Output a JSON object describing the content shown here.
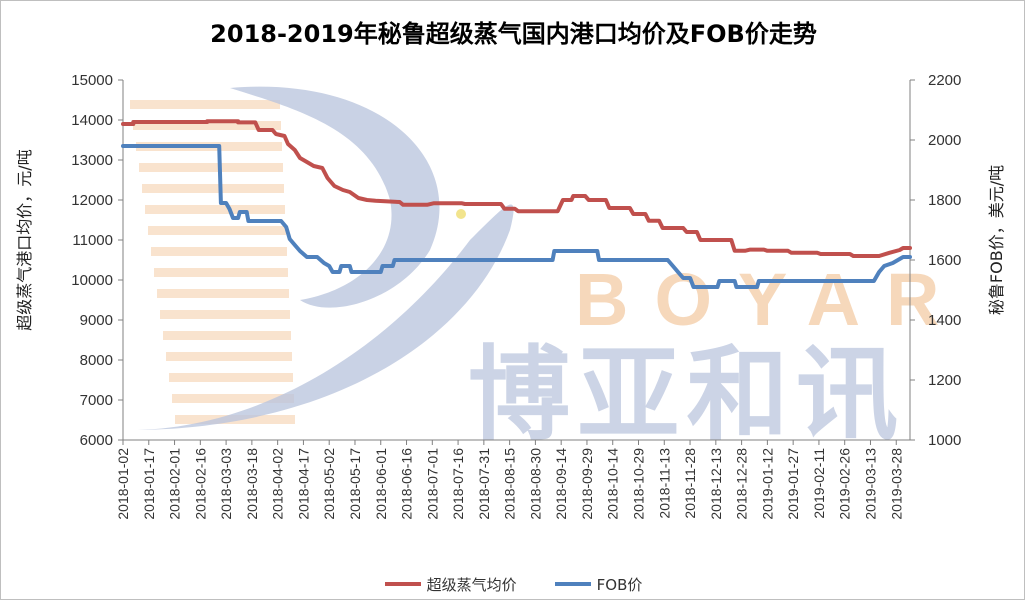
{
  "colors": {
    "series_red": "#c0504d",
    "series_blue": "#4f81bd",
    "watermark_blue": "#b8c3dc",
    "watermark_orange": "#f3c9a0"
  },
  "watermark": {
    "brand_en": "BOYAR",
    "brand_cn": "博亚和讯"
  },
  "chart_data": {
    "type": "line",
    "title": "2018-2019年秘鲁超级蒸气国内港口均价及FOB价走势",
    "ylabel_left": "超级蒸气港口均价，元/吨",
    "ylabel_right": "秘鲁FOB价，美元/吨",
    "ylim_left": [
      6000,
      15000
    ],
    "ylim_right": [
      1000,
      2200
    ],
    "yticks_left": [
      6000,
      7000,
      8000,
      9000,
      10000,
      11000,
      12000,
      13000,
      14000,
      15000
    ],
    "yticks_right": [
      1000,
      1200,
      1400,
      1600,
      1800,
      2000,
      2200
    ],
    "xlim": [
      "2018-01-02",
      "2019-04-05"
    ],
    "xtick_labels": [
      "2018-01-02",
      "2018-01-17",
      "2018-02-01",
      "2018-02-16",
      "2018-03-03",
      "2018-03-18",
      "2018-04-02",
      "2018-04-17",
      "2018-05-02",
      "2018-05-17",
      "2018-06-01",
      "2018-06-16",
      "2018-07-01",
      "2018-07-16",
      "2018-07-31",
      "2018-08-15",
      "2018-08-30",
      "2018-09-14",
      "2018-09-29",
      "2018-10-14",
      "2018-10-29",
      "2018-11-13",
      "2018-11-28",
      "2018-12-13",
      "2018-12-28",
      "2019-01-12",
      "2019-01-27",
      "2019-02-11",
      "2019-02-26",
      "2019-03-13",
      "2019-03-28"
    ],
    "legend_position": "bottom",
    "grid": false,
    "series": [
      {
        "name": "超级蒸气均价",
        "axis": "left",
        "color": "#c0504d",
        "points": [
          [
            "2018-01-02",
            13900
          ],
          [
            "2018-01-08",
            13900
          ],
          [
            "2018-01-08",
            13950
          ],
          [
            "2018-02-20",
            13950
          ],
          [
            "2018-02-20",
            13970
          ],
          [
            "2018-03-10",
            13970
          ],
          [
            "2018-03-10",
            13940
          ],
          [
            "2018-03-20",
            13940
          ],
          [
            "2018-03-22",
            13750
          ],
          [
            "2018-03-30",
            13750
          ],
          [
            "2018-04-01",
            13650
          ],
          [
            "2018-04-06",
            13600
          ],
          [
            "2018-04-08",
            13400
          ],
          [
            "2018-04-12",
            13250
          ],
          [
            "2018-04-15",
            13050
          ],
          [
            "2018-04-19",
            12950
          ],
          [
            "2018-04-23",
            12850
          ],
          [
            "2018-04-28",
            12800
          ],
          [
            "2018-05-01",
            12550
          ],
          [
            "2018-05-05",
            12350
          ],
          [
            "2018-05-10",
            12250
          ],
          [
            "2018-05-14",
            12200
          ],
          [
            "2018-05-19",
            12050
          ],
          [
            "2018-05-24",
            12000
          ],
          [
            "2018-05-29",
            11980
          ],
          [
            "2018-06-12",
            11950
          ],
          [
            "2018-06-14",
            11880
          ],
          [
            "2018-06-28",
            11880
          ],
          [
            "2018-07-02",
            11920
          ],
          [
            "2018-07-18",
            11920
          ],
          [
            "2018-07-20",
            11900
          ],
          [
            "2018-08-10",
            11900
          ],
          [
            "2018-08-12",
            11780
          ],
          [
            "2018-08-18",
            11780
          ],
          [
            "2018-08-20",
            11720
          ],
          [
            "2018-09-12",
            11720
          ],
          [
            "2018-09-15",
            12000
          ],
          [
            "2018-09-20",
            12000
          ],
          [
            "2018-09-21",
            12100
          ],
          [
            "2018-09-28",
            12100
          ],
          [
            "2018-09-30",
            12000
          ],
          [
            "2018-10-10",
            12000
          ],
          [
            "2018-10-12",
            11800
          ],
          [
            "2018-10-24",
            11800
          ],
          [
            "2018-10-26",
            11650
          ],
          [
            "2018-11-02",
            11650
          ],
          [
            "2018-11-04",
            11480
          ],
          [
            "2018-11-10",
            11480
          ],
          [
            "2018-11-12",
            11300
          ],
          [
            "2018-11-24",
            11300
          ],
          [
            "2018-11-26",
            11200
          ],
          [
            "2018-12-02",
            11200
          ],
          [
            "2018-12-04",
            11000
          ],
          [
            "2018-12-22",
            11000
          ],
          [
            "2018-12-24",
            10730
          ],
          [
            "2018-12-30",
            10730
          ],
          [
            "2019-01-02",
            10760
          ],
          [
            "2019-01-10",
            10760
          ],
          [
            "2019-01-12",
            10730
          ],
          [
            "2019-01-24",
            10730
          ],
          [
            "2019-01-26",
            10680
          ],
          [
            "2019-02-10",
            10680
          ],
          [
            "2019-02-12",
            10650
          ],
          [
            "2019-03-01",
            10650
          ],
          [
            "2019-03-03",
            10600
          ],
          [
            "2019-03-18",
            10600
          ],
          [
            "2019-03-24",
            10680
          ],
          [
            "2019-03-30",
            10750
          ],
          [
            "2019-04-01",
            10800
          ],
          [
            "2019-04-05",
            10800
          ]
        ]
      },
      {
        "name": "FOB价",
        "axis": "right",
        "color": "#4f81bd",
        "points": [
          [
            "2018-01-02",
            1980
          ],
          [
            "2018-02-27",
            1980
          ],
          [
            "2018-02-28",
            1790
          ],
          [
            "2018-03-03",
            1790
          ],
          [
            "2018-03-05",
            1770
          ],
          [
            "2018-03-07",
            1740
          ],
          [
            "2018-03-10",
            1740
          ],
          [
            "2018-03-11",
            1760
          ],
          [
            "2018-03-15",
            1760
          ],
          [
            "2018-03-16",
            1730
          ],
          [
            "2018-04-04",
            1730
          ],
          [
            "2018-04-07",
            1710
          ],
          [
            "2018-04-09",
            1670
          ],
          [
            "2018-04-12",
            1650
          ],
          [
            "2018-04-15",
            1630
          ],
          [
            "2018-04-19",
            1610
          ],
          [
            "2018-04-25",
            1610
          ],
          [
            "2018-04-29",
            1590
          ],
          [
            "2018-05-02",
            1580
          ],
          [
            "2018-05-04",
            1560
          ],
          [
            "2018-05-08",
            1560
          ],
          [
            "2018-05-09",
            1580
          ],
          [
            "2018-05-14",
            1580
          ],
          [
            "2018-05-15",
            1560
          ],
          [
            "2018-06-01",
            1560
          ],
          [
            "2018-06-02",
            1580
          ],
          [
            "2018-06-08",
            1580
          ],
          [
            "2018-06-09",
            1600
          ],
          [
            "2018-09-09",
            1600
          ],
          [
            "2018-09-10",
            1630
          ],
          [
            "2018-10-05",
            1630
          ],
          [
            "2018-10-06",
            1600
          ],
          [
            "2018-11-15",
            1600
          ],
          [
            "2018-11-18",
            1580
          ],
          [
            "2018-11-21",
            1560
          ],
          [
            "2018-11-24",
            1540
          ],
          [
            "2018-11-28",
            1540
          ],
          [
            "2018-11-30",
            1510
          ],
          [
            "2018-12-14",
            1510
          ],
          [
            "2018-12-15",
            1530
          ],
          [
            "2018-12-24",
            1530
          ],
          [
            "2018-12-25",
            1510
          ],
          [
            "2019-01-06",
            1510
          ],
          [
            "2019-01-07",
            1530
          ],
          [
            "2019-03-15",
            1530
          ],
          [
            "2019-03-18",
            1560
          ],
          [
            "2019-03-21",
            1580
          ],
          [
            "2019-03-26",
            1590
          ],
          [
            "2019-04-01",
            1610
          ],
          [
            "2019-04-05",
            1610
          ]
        ]
      }
    ]
  }
}
